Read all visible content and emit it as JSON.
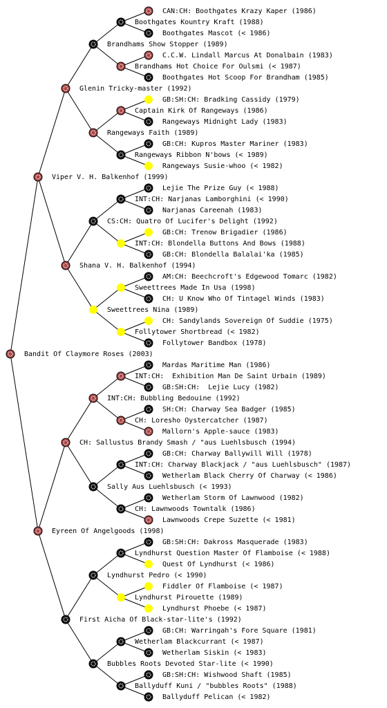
{
  "generations": [
    [
      {
        "name": "Bandit Of Claymore Roses (2003)",
        "color": "#a84444"
      }
    ],
    [
      {
        "name": "Viper V. H. Balkenhof (1999)",
        "color": "#a84444"
      },
      {
        "name": "Eyreen Of Angelgoods (1998)",
        "color": "#a84444"
      }
    ],
    [
      {
        "name": "Glenin Tricky-master (1992)",
        "color": "#a84444"
      },
      {
        "name": "Shana V. H. Balkenhof (1994)",
        "color": "#a84444"
      },
      {
        "name": "CH: Sallustus Brandy Smash / \"aus Luehlsbusch (1994)",
        "color": "#a84444"
      },
      {
        "name": "First Aicha Of Black-star-lite's (1992)",
        "color": "#111111"
      }
    ],
    [
      {
        "name": "Brandhams Show Stopper (1989)",
        "color": "#111111"
      },
      {
        "name": "Rangeways Faith (1989)",
        "color": "#a84444"
      },
      {
        "name": "CS:CH: Quatro Of Lucifer's Delight (1992)",
        "color": "#111111"
      },
      {
        "name": "Sweettrees Nina (1989)",
        "color": "#ffff00"
      },
      {
        "name": "INT:CH: Bubbling Bedouine (1992)",
        "color": "#a84444"
      },
      {
        "name": "Sally Aus Luehlsbusch (< 1993)",
        "color": "#111111"
      },
      {
        "name": "Lyndhurst Pedro (< 1990)",
        "color": "#111111"
      },
      {
        "name": "Bubbles Roots Devoted Star-lite (< 1990)",
        "color": "#111111"
      }
    ],
    [
      {
        "name": "Boothgates Kountry Kraft (1988)",
        "color": "#111111"
      },
      {
        "name": "Brandhams Hot Choice For Oulsmi (< 1987)",
        "color": "#a84444"
      },
      {
        "name": "Captain Kirk Of Rangeways (1986)",
        "color": "#a84444"
      },
      {
        "name": "Rangeways Ribbon N'bows (< 1989)",
        "color": "#111111"
      },
      {
        "name": "INT:CH: Narjanas Lamborghini (< 1990)",
        "color": "#111111"
      },
      {
        "name": "INT:CH: Blondella Buttons And Bows (1988)",
        "color": "#ffff00"
      },
      {
        "name": "Sweettrees Made In Usa (1998)",
        "color": "#ffff00"
      },
      {
        "name": "Follytower Shortbread (< 1982)",
        "color": "#ffff00"
      },
      {
        "name": "INT:CH:  Exhibition Man De Saint Urbain (1989)",
        "color": "#a84444"
      },
      {
        "name": "CH: Loresho Oystercatcher (1987)",
        "color": "#a84444"
      },
      {
        "name": "INT:CH: Charway Blackjack / \"aus Luehlsbusch\" (1987)",
        "color": "#111111"
      },
      {
        "name": "CH: Lawnwoods Towntalk (1986)",
        "color": "#111111"
      },
      {
        "name": "Lyndhurst Question Master Of Flamboise (< 1988)",
        "color": "#111111"
      },
      {
        "name": "Lyndhurst Pirouette (1989)",
        "color": "#ffff00"
      },
      {
        "name": "Wetherlam Blackcurrant (< 1987)",
        "color": "#111111"
      },
      {
        "name": "Ballyduff Kuni / \"bubbles Roots\" (1988)",
        "color": "#111111"
      }
    ],
    [
      {
        "name": "CAN:CH: Boothgates Krazy Kaper (1986)",
        "color": "#a84444"
      },
      {
        "name": "Boothgates Mascot (< 1986)",
        "color": "#111111"
      },
      {
        "name": "C.C.W. Lindall Marcus At Donalbain (1983)",
        "color": "#a84444"
      },
      {
        "name": "Boothgates Hot Scoop For Brandham (1985)",
        "color": "#111111"
      },
      {
        "name": "GB:SH:CH: Bradking Cassidy (1979)",
        "color": "#ffff00"
      },
      {
        "name": "Rangeways Midnight Lady (1983)",
        "color": "#111111"
      },
      {
        "name": "GB:CH: Kupros Master Mariner (1983)",
        "color": "#111111"
      },
      {
        "name": "Rangeways Susie-whoo (< 1982)",
        "color": "#ffff00"
      },
      {
        "name": "Lejie The Prize Guy (< 1988)",
        "color": "#111111"
      },
      {
        "name": "Narjanas Careenah (1983)",
        "color": "#111111"
      },
      {
        "name": "GB:CH: Trenow Brigadier (1986)",
        "color": "#ffff00"
      },
      {
        "name": "GB:CH: Blondella Balalai'ka (1985)",
        "color": "#111111"
      },
      {
        "name": "AM:CH: Beechcroft's Edgewood Tomarc (1982)",
        "color": "#111111"
      },
      {
        "name": "CH: U Know Who Of Tintagel Winds (1983)",
        "color": "#111111"
      },
      {
        "name": "CH: Sandylands Sovereign Of Suddie (1975)",
        "color": "#ffff00"
      },
      {
        "name": "Follytower Bandbox (1978)",
        "color": "#111111"
      },
      {
        "name": "Mardas Maritime Man (1986)",
        "color": "#111111"
      },
      {
        "name": "GB:SH:CH:  Lejie Lucy (1982)",
        "color": "#111111"
      },
      {
        "name": "SH:CH: Charway Sea Badger (1985)",
        "color": "#111111"
      },
      {
        "name": "Mallorn's Apple-sauce (1983)",
        "color": "#a84444"
      },
      {
        "name": "GB:CH: Charway Ballywill Will (1978)",
        "color": "#111111"
      },
      {
        "name": "Wetherlam Black Cherry Of Charway (< 1986)",
        "color": "#111111"
      },
      {
        "name": "Wetherlam Storm Of Lawnwood (1982)",
        "color": "#111111"
      },
      {
        "name": "Lawnwoods Crepe Suzette (< 1981)",
        "color": "#a84444"
      },
      {
        "name": "GB:SH:CH: Dakross Masquerade (1983)",
        "color": "#111111"
      },
      {
        "name": "Quest Of Lyndhurst (< 1986)",
        "color": "#ffff00"
      },
      {
        "name": "Fiddler Of Flamboise (< 1987)",
        "color": "#ffff00"
      },
      {
        "name": "Lyndhurst Phoebe (< 1987)",
        "color": "#ffff00"
      },
      {
        "name": "GB:CH: Warringah's Fore Square (1981)",
        "color": "#111111"
      },
      {
        "name": "Wetherlam Siskin (< 1983)",
        "color": "#111111"
      },
      {
        "name": "GB:SH:CH: Wishwood Shaft (1985)",
        "color": "#111111"
      },
      {
        "name": "Ballyduff Pelican (< 1982)",
        "color": "#111111"
      }
    ]
  ]
}
